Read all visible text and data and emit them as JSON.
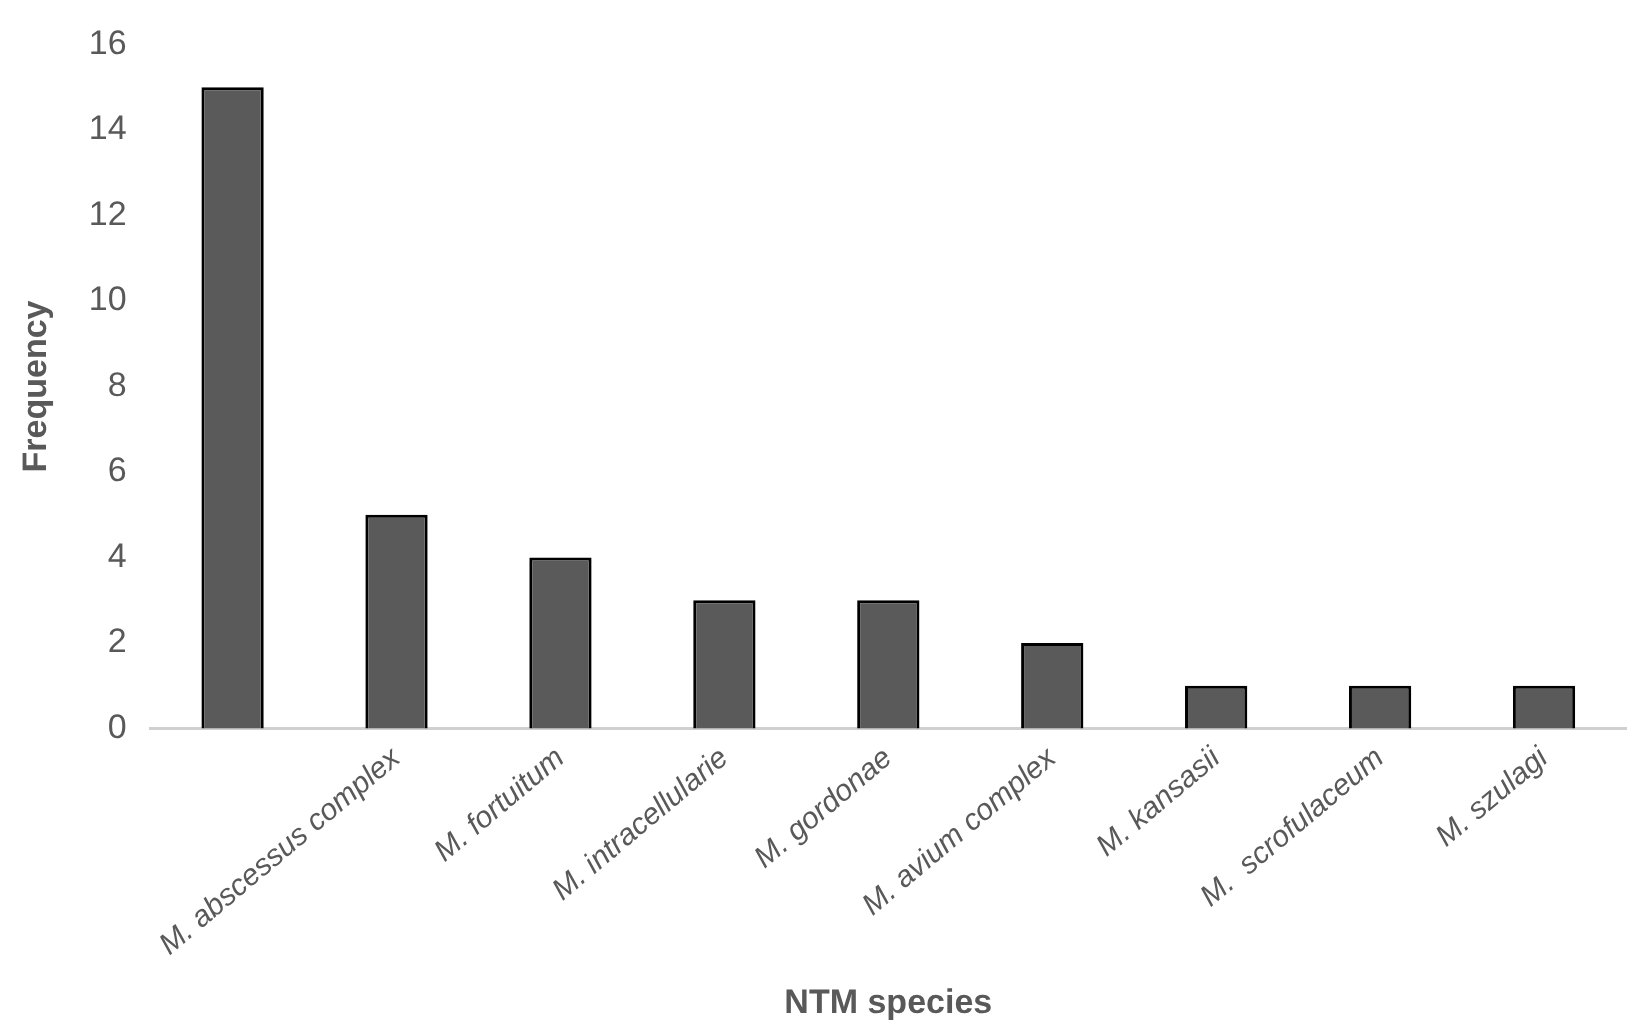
{
  "chart_data": {
    "type": "bar",
    "xlabel": "NTM species",
    "ylabel": "Frequency",
    "categories": [
      null,
      "M. abscessus complex",
      "M. fortuitum",
      "M. intracellularie",
      "M. gordonae",
      "M. avium complex",
      "M. kansasii",
      "M.  scrofulaceum",
      "M. szulagi"
    ],
    "values": [
      15,
      5,
      4,
      3,
      3,
      2,
      1,
      1,
      1
    ],
    "color": "#5a5a5a",
    "ylim": [
      0,
      16
    ],
    "yticks": [
      0,
      2,
      4,
      6,
      8,
      10,
      12,
      14,
      16
    ],
    "grid": false,
    "legend": false
  }
}
